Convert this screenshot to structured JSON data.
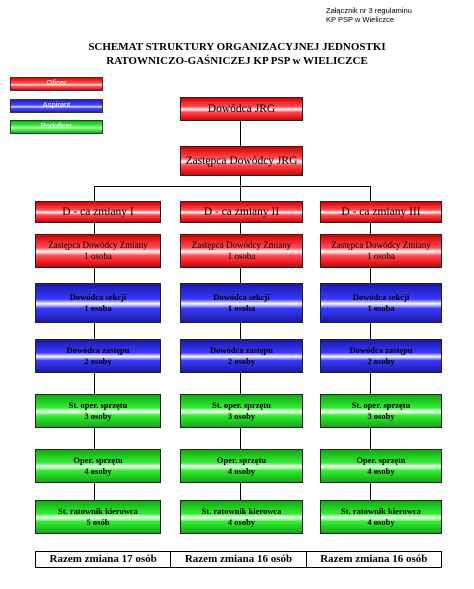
{
  "appendix": [
    "Załącznik nr 3 regulaminu",
    "KP PSP w Wieliczce"
  ],
  "title": [
    "SCHEMAT STRUKTURY ORGANIZACYJNEJ JEDNOSTKI",
    "RATOWNICZO-GAŚNICZEJ KP PSP w WIELICZCE"
  ],
  "legend": [
    {
      "label": "Oficer",
      "color": "red"
    },
    {
      "label": "Aspirant",
      "color": "blue"
    },
    {
      "label": "Podoficer",
      "color": "green"
    }
  ],
  "top": {
    "commander": "Dowódca JRG",
    "deputy": "Zastępca Dowódcy JRG"
  },
  "shifts": [
    {
      "head": "D - ca zmiany I",
      "roles": [
        {
          "l1": "Zastępca Dowódcy Zmiany",
          "l2": "1 osoba",
          "color": "red"
        },
        {
          "l1": "Dowódca sekcji",
          "l2": "1 osoba",
          "color": "blue"
        },
        {
          "l1": "Dowódca zastępu",
          "l2": "2 osoby",
          "color": "blue"
        },
        {
          "l1": "St. oper. sprzętu",
          "l2": "3 osoby",
          "color": "green"
        },
        {
          "l1": "Oper. sprzętu",
          "l2": "4 osoby",
          "color": "green"
        },
        {
          "l1": "St. ratownik kierowca",
          "l2": "5 osób",
          "color": "green"
        }
      ],
      "total": "Razem zmiana 17 osób"
    },
    {
      "head": "D - ca zmiany II",
      "roles": [
        {
          "l1": "Zastępca Dowódcy Zmiany",
          "l2": "1 osoba",
          "color": "red"
        },
        {
          "l1": "Dowódca sekcji",
          "l2": "1 osoba",
          "color": "blue"
        },
        {
          "l1": "Dowódca zastępu",
          "l2": "2 osoby",
          "color": "blue"
        },
        {
          "l1": "St. oper. sprzętu",
          "l2": "3 osoby",
          "color": "green"
        },
        {
          "l1": "Oper. sprzętu",
          "l2": "4 osoby",
          "color": "green"
        },
        {
          "l1": "St. ratownik kierowca",
          "l2": "4 osoby",
          "color": "green"
        }
      ],
      "total": "Razem zmiana 16 osób"
    },
    {
      "head": "D - ca zmiany III",
      "roles": [
        {
          "l1": "Zastępca Dowódcy Zmiany",
          "l2": "1 osoba",
          "color": "red"
        },
        {
          "l1": "Dowódca sekcji",
          "l2": "1 osoba",
          "color": "blue"
        },
        {
          "l1": "Dowódca zastępu",
          "l2": "2 osoby",
          "color": "blue"
        },
        {
          "l1": "St. oper. sprzętu",
          "l2": "3 osoby",
          "color": "green"
        },
        {
          "l1": "Oper. sprzętu",
          "l2": "4 osoby",
          "color": "green"
        },
        {
          "l1": "St. ratownik kierowca",
          "l2": "4 osoby",
          "color": "green"
        }
      ],
      "total": "Razem zmiana 16 osób"
    }
  ]
}
